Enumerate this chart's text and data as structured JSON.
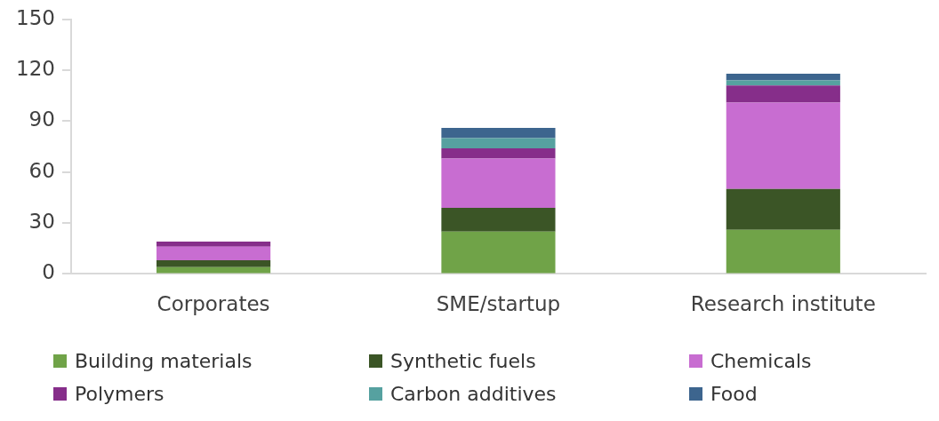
{
  "chart_data": {
    "type": "bar",
    "stacked": true,
    "categories": [
      "Corporates",
      "SME/startup",
      "Research institute"
    ],
    "series": [
      {
        "name": "Building materials",
        "color": "#70a348",
        "values": [
          4,
          25,
          26
        ]
      },
      {
        "name": "Synthetic fuels",
        "color": "#3b5526",
        "values": [
          4,
          14,
          24
        ]
      },
      {
        "name": "Chemicals",
        "color": "#c86dd1",
        "values": [
          8,
          29,
          51
        ]
      },
      {
        "name": "Polymers",
        "color": "#862e8a",
        "values": [
          3,
          6,
          10
        ]
      },
      {
        "name": "Carbon additives",
        "color": "#56a1a0",
        "values": [
          0,
          6,
          3
        ]
      },
      {
        "name": "Food",
        "color": "#3d658e",
        "values": [
          0,
          6,
          4
        ]
      }
    ],
    "ylim": [
      0,
      150
    ],
    "yticks": [
      0,
      30,
      60,
      90,
      120,
      150
    ],
    "grid": false,
    "legend": "bottom"
  }
}
